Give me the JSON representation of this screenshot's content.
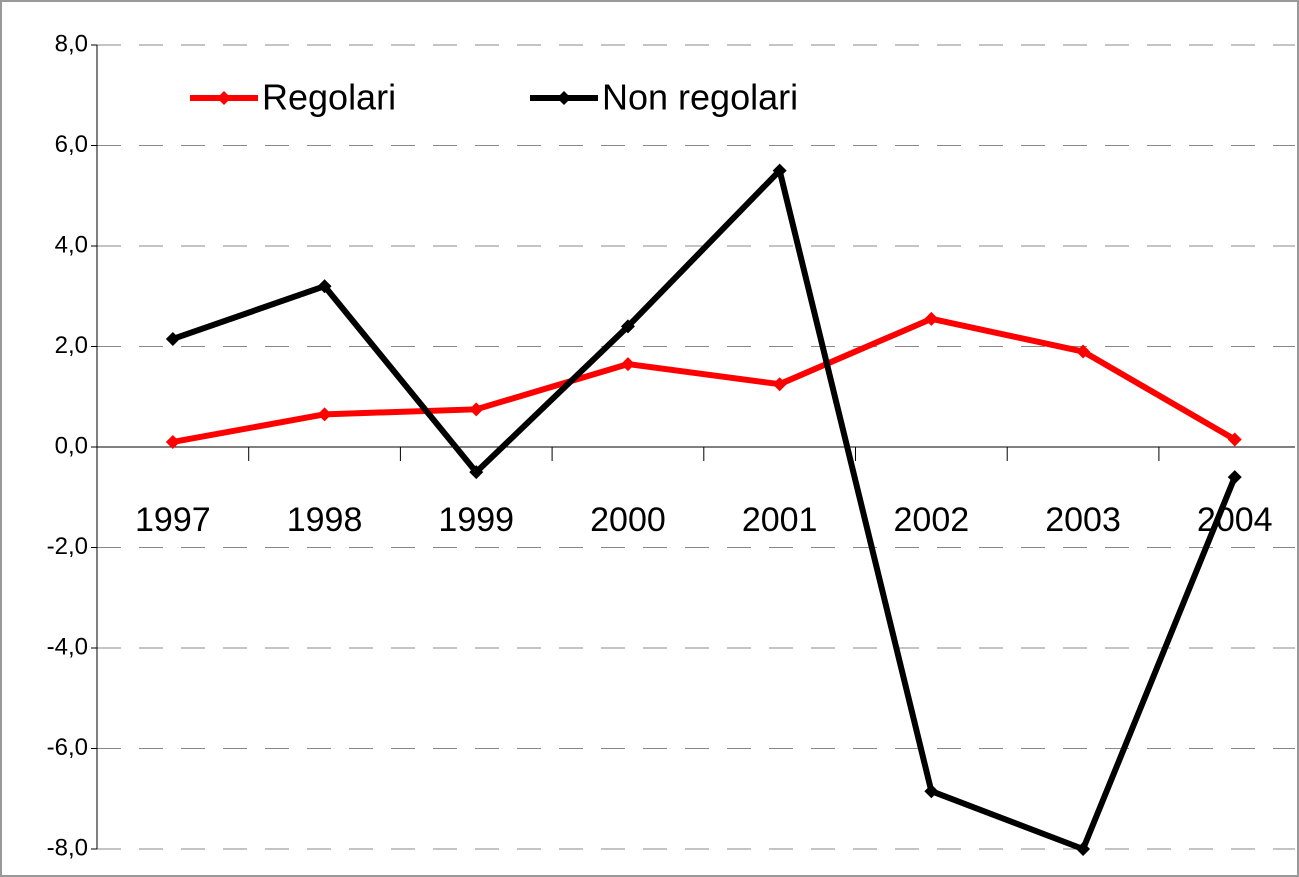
{
  "chart_data": {
    "type": "line",
    "categories": [
      "1997",
      "1998",
      "1999",
      "2000",
      "2001",
      "2002",
      "2003",
      "2004"
    ],
    "series": [
      {
        "name": "Regolari",
        "color": "#ff0000",
        "values": [
          0.1,
          0.65,
          0.75,
          1.65,
          1.25,
          2.55,
          1.9,
          0.15
        ]
      },
      {
        "name": "Non regolari",
        "color": "#000000",
        "values": [
          2.15,
          3.2,
          -0.5,
          2.4,
          5.5,
          -6.85,
          -8.0,
          -0.6
        ]
      }
    ],
    "ylim": [
      -8,
      8
    ],
    "yticks": [
      {
        "value": 8,
        "label": "8,0"
      },
      {
        "value": 6,
        "label": "6,0"
      },
      {
        "value": 4,
        "label": "4,0"
      },
      {
        "value": 2,
        "label": "2,0"
      },
      {
        "value": 0,
        "label": "0,0"
      },
      {
        "value": -2,
        "label": "-2,0"
      },
      {
        "value": -4,
        "label": "-4,0"
      },
      {
        "value": -6,
        "label": "-6,0"
      },
      {
        "value": -8,
        "label": "-8,0"
      }
    ],
    "grid": true,
    "legend": "top-left"
  }
}
